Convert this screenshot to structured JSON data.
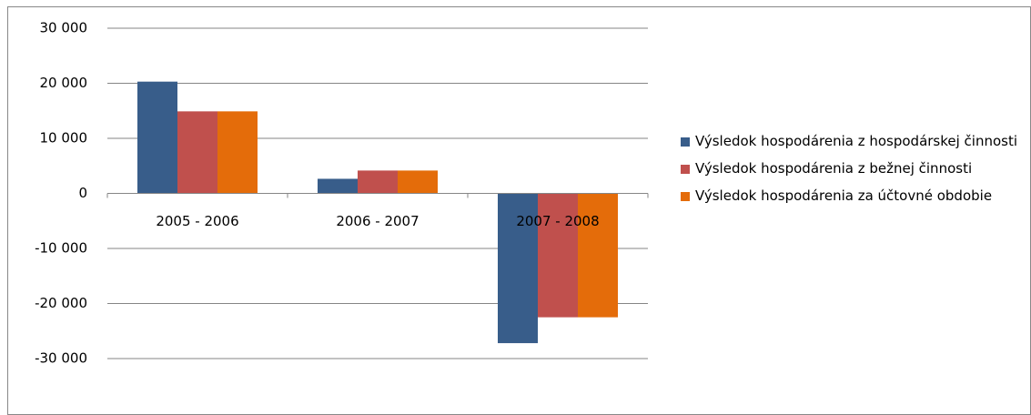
{
  "chart_data": {
    "type": "bar",
    "categories": [
      "2005 - 2006",
      "2006 - 2007",
      "2007 - 2008"
    ],
    "series": [
      {
        "name": "Výsledok hospodárenia  z hospodárskej činnosti",
        "color": "#385d8a",
        "values": [
          20300,
          2650,
          -27200
        ]
      },
      {
        "name": "Výsledok hospodárenia  z bežnej činnosti",
        "color": "#c0504d",
        "values": [
          14900,
          4150,
          -22500
        ]
      },
      {
        "name": "Výsledok hospodárenia  za účtovné obdobie",
        "color": "#e46c0a",
        "values": [
          14900,
          4150,
          -22500
        ]
      }
    ],
    "ylim": [
      -30000,
      30000
    ],
    "yticks": [
      {
        "value": -30000,
        "label": "-30 000"
      },
      {
        "value": -20000,
        "label": "-20 000"
      },
      {
        "value": -10000,
        "label": "-10 000"
      },
      0,
      {
        "value": 10000,
        "label": "10 000"
      },
      {
        "value": 20000,
        "label": "20 000"
      },
      {
        "value": 30000,
        "label": "30 000"
      }
    ],
    "grid": true,
    "legend": "right"
  }
}
